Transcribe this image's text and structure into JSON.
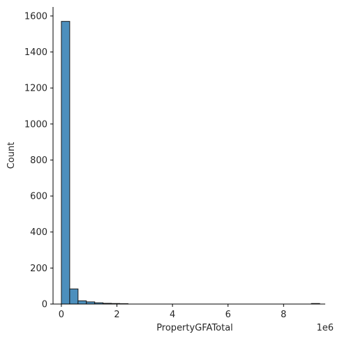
{
  "chart_data": {
    "type": "bar",
    "xlabel": "PropertyGFATotal",
    "ylabel": "Count",
    "x_offset_label": "1e6",
    "xlim": [
      -0.3,
      9.5
    ],
    "ylim": [
      0,
      1650
    ],
    "x_ticks": [
      0,
      2,
      4,
      6,
      8
    ],
    "y_ticks": [
      0,
      200,
      400,
      600,
      800,
      1000,
      1200,
      1400,
      1600
    ],
    "bin_width": 0.3,
    "bins": [
      {
        "x0": 0.0,
        "count": 1570
      },
      {
        "x0": 0.3,
        "count": 84
      },
      {
        "x0": 0.6,
        "count": 18
      },
      {
        "x0": 0.9,
        "count": 12
      },
      {
        "x0": 1.2,
        "count": 7
      },
      {
        "x0": 1.5,
        "count": 4
      },
      {
        "x0": 1.8,
        "count": 3
      },
      {
        "x0": 2.1,
        "count": 2
      },
      {
        "x0": 9.0,
        "count": 3
      }
    ],
    "bar_color": "#4c8fbd",
    "grid": false
  }
}
